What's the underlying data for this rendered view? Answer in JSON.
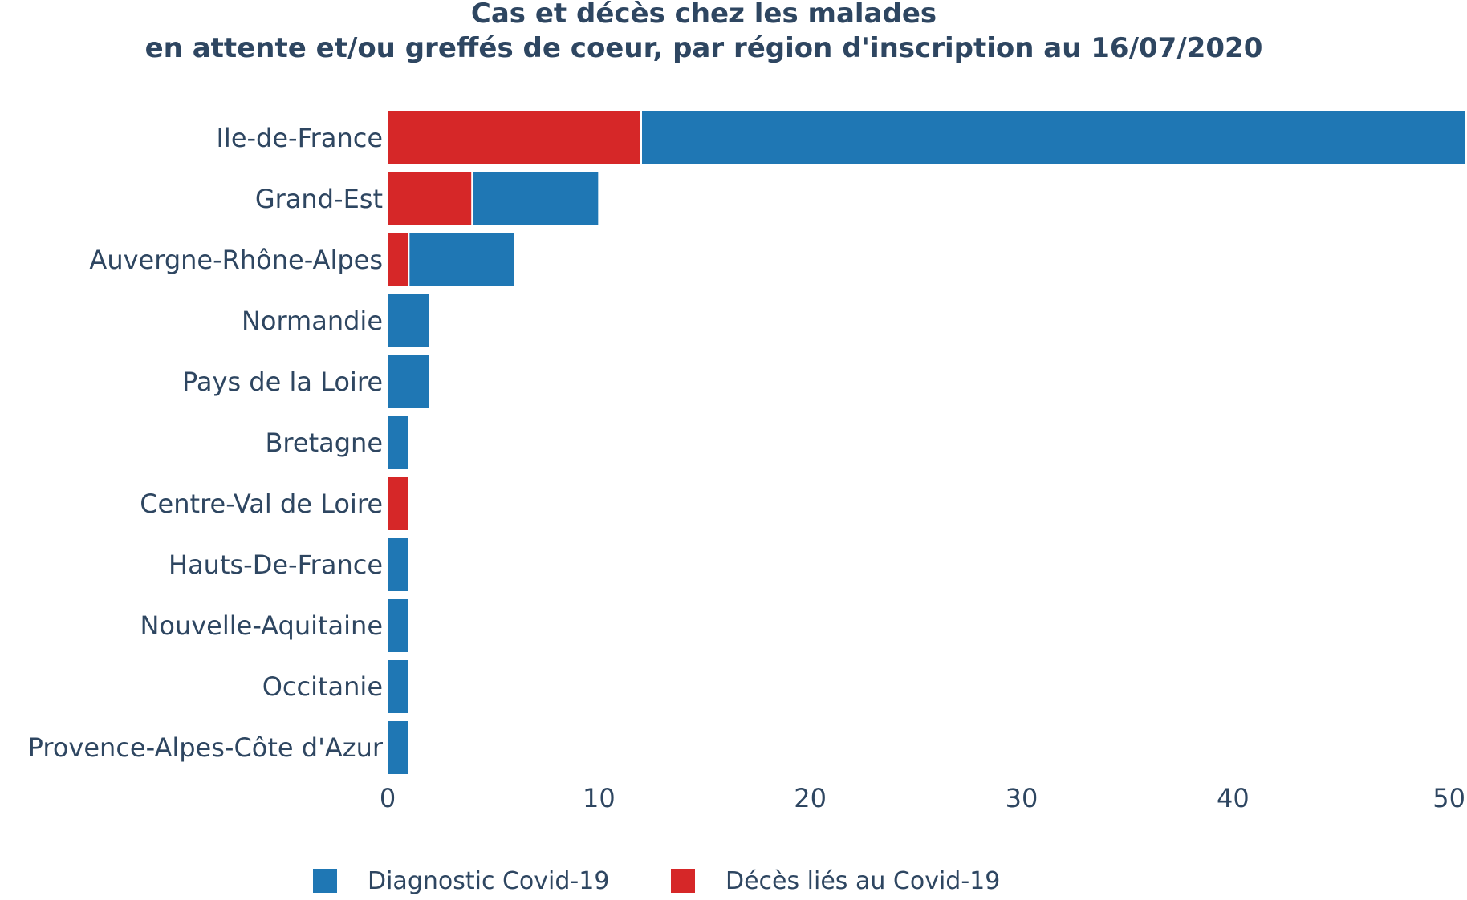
{
  "chart_data": {
    "type": "bar",
    "orientation": "horizontal",
    "barmode": "stack",
    "title_lines": [
      "Cas et décès chez les malades",
      "en attente et/ou greffés de coeur, par région d'inscription au 16/07/2020"
    ],
    "categories": [
      "Ile-de-France",
      "Grand-Est",
      "Auvergne-Rhône-Alpes",
      "Normandie",
      "Pays de la Loire",
      "Bretagne",
      "Centre-Val de Loire",
      "Hauts-De-France",
      "Nouvelle-Aquitaine",
      "Occitanie",
      "Provence-Alpes-Côte d'Azur"
    ],
    "series": [
      {
        "name": "Décès liés au Covid-19",
        "color": "#d62728",
        "values": [
          12,
          4,
          1,
          0,
          0,
          0,
          1,
          0,
          0,
          0,
          0
        ]
      },
      {
        "name": "Diagnostic Covid-19",
        "color": "#1f77b4",
        "values": [
          39,
          6,
          5,
          2,
          2,
          1,
          0,
          1,
          1,
          1,
          1
        ]
      }
    ],
    "legend_order": [
      "Diagnostic Covid-19",
      "Décès liés au Covid-19"
    ],
    "legend_position": "bottom-center",
    "xlim": [
      0,
      51
    ],
    "xticks": [
      0,
      10,
      20,
      30,
      40,
      50
    ],
    "xlabel": "",
    "ylabel": "",
    "grid": false
  }
}
